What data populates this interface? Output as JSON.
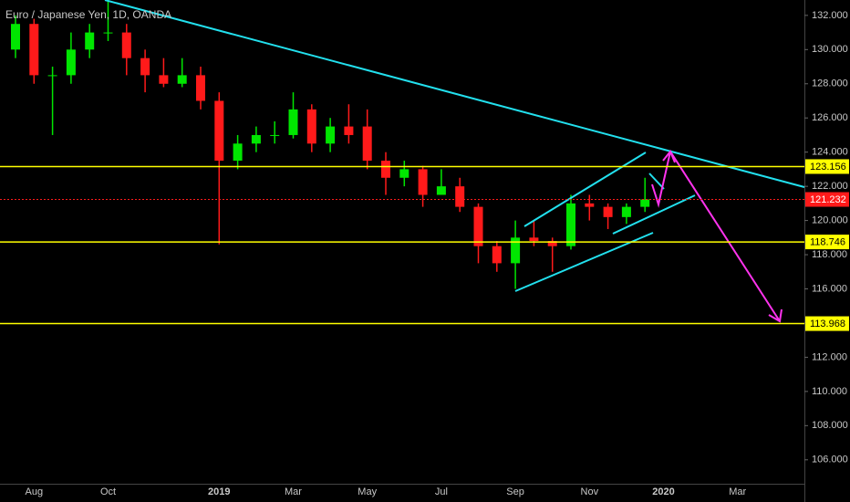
{
  "chart_data": {
    "type": "candlestick",
    "title": "Euro / Japanese Yen, 1D, OANDA",
    "categories": [
      null,
      "Aug",
      null,
      null,
      null,
      "Oct",
      null,
      null,
      null,
      null,
      null,
      "2019",
      null,
      null,
      null,
      "Mar",
      null,
      null,
      null,
      "May",
      null,
      null,
      null,
      "Jul",
      null,
      null,
      null,
      "Sep",
      null,
      null,
      null,
      "Nov",
      null,
      null,
      null,
      "2020",
      null,
      null,
      null,
      "Mar",
      null,
      null,
      null
    ],
    "open": [
      130.0,
      131.5,
      128.5,
      128.5,
      130.0,
      131.0,
      131.0,
      129.5,
      128.5,
      128.0,
      128.5,
      127.0,
      123.5,
      124.5,
      125.0,
      125.0,
      126.5,
      124.5,
      125.5,
      125.5,
      123.5,
      122.5,
      123.0,
      121.5,
      122.0,
      120.8,
      118.5,
      117.5,
      119.0,
      118.8,
      118.5,
      121.0,
      120.8,
      120.2,
      120.8,
      null,
      null,
      null,
      null,
      null,
      null,
      null,
      null
    ],
    "high": [
      132.0,
      131.8,
      129.0,
      131.0,
      131.5,
      133.0,
      131.5,
      130.0,
      129.5,
      129.5,
      129.0,
      127.5,
      125.0,
      125.5,
      125.8,
      127.5,
      126.8,
      126.0,
      126.8,
      126.5,
      124.0,
      123.5,
      123.2,
      123.0,
      122.5,
      121.0,
      118.8,
      120.0,
      120.0,
      119.0,
      121.5,
      121.5,
      121.0,
      121.0,
      122.5,
      null,
      null,
      null,
      null,
      null,
      null,
      null,
      null
    ],
    "low": [
      129.5,
      128.0,
      125.0,
      128.0,
      129.5,
      130.5,
      128.5,
      127.5,
      127.8,
      127.8,
      126.5,
      118.6,
      123.0,
      124.0,
      124.5,
      124.8,
      124.0,
      124.0,
      124.5,
      123.0,
      121.5,
      122.0,
      120.8,
      121.5,
      120.5,
      117.5,
      117.0,
      116.0,
      118.5,
      117.0,
      118.3,
      120.0,
      119.5,
      119.8,
      120.5,
      null,
      null,
      null,
      null,
      null,
      null,
      null,
      null
    ],
    "close": [
      131.5,
      128.5,
      128.5,
      130.0,
      131.0,
      131.0,
      129.5,
      128.5,
      128.0,
      128.5,
      127.0,
      123.5,
      124.5,
      125.0,
      125.0,
      126.5,
      124.5,
      125.5,
      125.0,
      123.5,
      122.5,
      123.0,
      121.5,
      122.0,
      120.8,
      118.5,
      117.5,
      119.0,
      118.8,
      118.5,
      121.0,
      120.8,
      120.2,
      120.8,
      121.232,
      null,
      null,
      null,
      null,
      null,
      null,
      null,
      null
    ],
    "up_color": "#00e600",
    "down_color": "#ff1a1a",
    "ylim": [
      104.6,
      132.9
    ],
    "yticks": [
      {
        "value": 106,
        "label": "106.000"
      },
      {
        "value": 108,
        "label": "108.000"
      },
      {
        "value": 110,
        "label": "110.000"
      },
      {
        "value": 112,
        "label": "112.000"
      },
      {
        "value": 114,
        "label": "114.000"
      },
      {
        "value": 116,
        "label": "116.000"
      },
      {
        "value": 118,
        "label": "118.000"
      },
      {
        "value": 120,
        "label": "120.000"
      },
      {
        "value": 122,
        "label": "122.000"
      },
      {
        "value": 124,
        "label": "124.000"
      },
      {
        "value": 126,
        "label": "126.000"
      },
      {
        "value": 128,
        "label": "128.000"
      },
      {
        "value": 130,
        "label": "130.000"
      },
      {
        "value": 132,
        "label": "132.000"
      }
    ],
    "levels": [
      123.156,
      118.746,
      113.968
    ],
    "level_color": "#ffff00",
    "last_price": 121.232,
    "last_color": "#ff1a1a"
  }
}
